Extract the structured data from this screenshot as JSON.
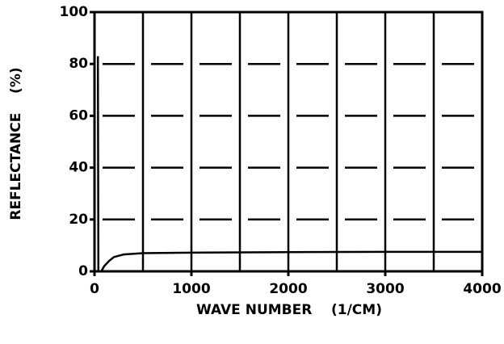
{
  "chart_data": {
    "type": "line",
    "xlabel": "WAVE NUMBER    (1/CM)",
    "ylabel": "REFLECTANCE    (%)",
    "x": [
      35,
      40,
      70,
      100,
      150,
      200,
      300,
      500,
      1000,
      2000,
      3000,
      4000
    ],
    "series": [
      {
        "name": "reflectance",
        "color": "#000000",
        "values": [
          83,
          0,
          0,
          2,
          4,
          5.5,
          6.5,
          7,
          7.2,
          7.4,
          7.5,
          7.5
        ]
      }
    ],
    "xlim": [
      0,
      4000
    ],
    "xticks": [
      0,
      1000,
      2000,
      3000,
      4000
    ],
    "xgrid": [
      500,
      1000,
      1500,
      2000,
      2500,
      3000,
      3500
    ],
    "ylim": [
      0,
      100
    ],
    "yticks": [
      0,
      20,
      40,
      60,
      80,
      100
    ],
    "grid": true
  }
}
